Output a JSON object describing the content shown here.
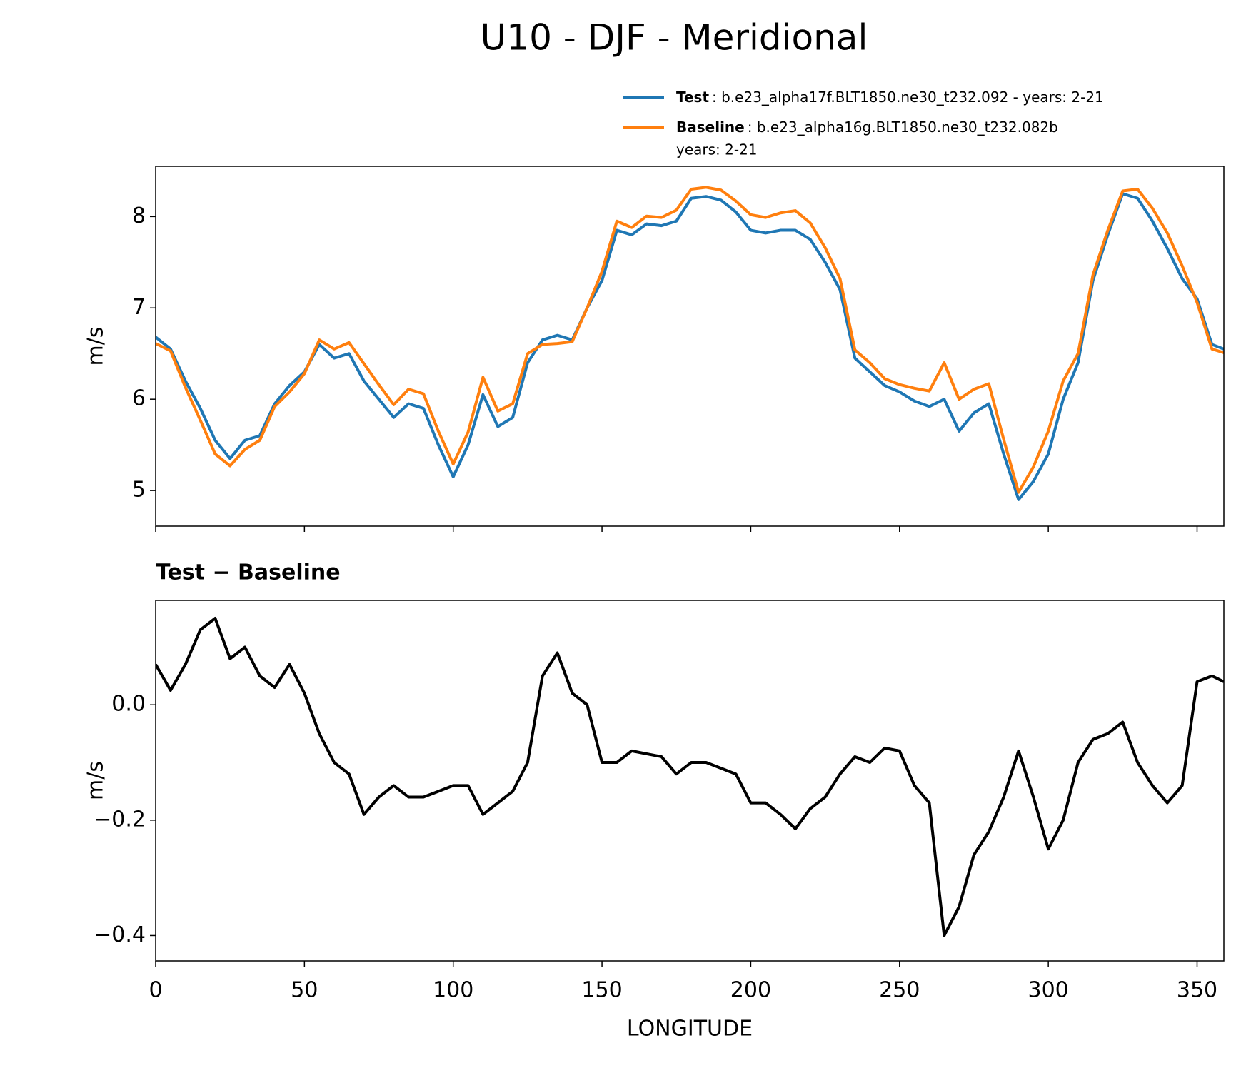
{
  "title": "U10 - DJF - Meridional",
  "chart_data": [
    {
      "type": "line",
      "x": [
        0,
        5,
        10,
        15,
        20,
        25,
        30,
        35,
        40,
        45,
        50,
        55,
        60,
        65,
        70,
        75,
        80,
        85,
        90,
        95,
        100,
        105,
        110,
        115,
        120,
        125,
        130,
        135,
        140,
        145,
        150,
        155,
        160,
        165,
        170,
        175,
        180,
        185,
        190,
        195,
        200,
        205,
        210,
        215,
        220,
        225,
        230,
        235,
        240,
        245,
        250,
        255,
        260,
        265,
        270,
        275,
        280,
        285,
        290,
        295,
        300,
        305,
        310,
        315,
        320,
        325,
        330,
        335,
        340,
        345,
        350,
        355,
        359
      ],
      "series": [
        {
          "name": "Test",
          "legend_text": [
            ": b.e23_alpha17f.BLT1850.ne30_t232.092 - years: 2-21"
          ],
          "color": "#1f77b4",
          "values": [
            6.68,
            6.55,
            6.2,
            5.9,
            5.55,
            5.35,
            5.55,
            5.6,
            5.95,
            6.15,
            6.3,
            6.6,
            6.45,
            6.5,
            6.2,
            6.0,
            5.8,
            5.95,
            5.9,
            5.5,
            5.15,
            5.5,
            6.05,
            5.7,
            5.8,
            6.4,
            6.65,
            6.7,
            6.65,
            7.0,
            7.3,
            7.85,
            7.8,
            7.92,
            7.9,
            7.95,
            8.2,
            8.22,
            8.18,
            8.05,
            7.85,
            7.82,
            7.85,
            7.85,
            7.75,
            7.5,
            7.2,
            6.45,
            6.3,
            6.15,
            6.08,
            5.98,
            5.92,
            6.0,
            5.65,
            5.85,
            5.95,
            5.4,
            4.9,
            5.1,
            5.4,
            6.0,
            6.4,
            7.3,
            7.8,
            8.25,
            8.2,
            7.95,
            7.65,
            7.32,
            7.1,
            6.6,
            6.55
          ]
        },
        {
          "name": "Baseline",
          "legend_text": [
            ": b.e23_alpha16g.BLT1850.ne30_t232.082b",
            "years: 2-21"
          ],
          "color": "#ff7f0e",
          "values": [
            6.61,
            6.53,
            6.13,
            5.77,
            5.4,
            5.27,
            5.45,
            5.55,
            5.92,
            6.08,
            6.28,
            6.65,
            6.55,
            6.62,
            6.39,
            6.16,
            5.94,
            6.11,
            6.06,
            5.65,
            5.29,
            5.64,
            6.24,
            5.87,
            5.95,
            6.5,
            6.6,
            6.61,
            6.63,
            7.0,
            7.4,
            7.95,
            7.88,
            8.005,
            7.99,
            8.07,
            8.3,
            8.32,
            8.29,
            8.17,
            8.02,
            7.99,
            8.04,
            8.065,
            7.93,
            7.66,
            7.32,
            6.54,
            6.4,
            6.225,
            6.16,
            6.12,
            6.09,
            6.4,
            6.0,
            6.11,
            6.17,
            5.56,
            4.98,
            5.26,
            5.65,
            6.2,
            6.5,
            7.36,
            7.85,
            8.28,
            8.3,
            8.09,
            7.82,
            7.46,
            7.06,
            6.55,
            6.51
          ]
        }
      ],
      "ylabel": "m/s",
      "xlim": [
        0,
        359
      ],
      "xticks": [
        0,
        50,
        100,
        150,
        200,
        250,
        300,
        350
      ],
      "ylim": [
        4.61,
        8.55
      ],
      "yticks": [
        5,
        6,
        7,
        8
      ]
    },
    {
      "type": "line",
      "title": "Test − Baseline",
      "xlabel": "LONGITUDE",
      "ylabel": "m/s",
      "x": [
        0,
        5,
        10,
        15,
        20,
        25,
        30,
        35,
        40,
        45,
        50,
        55,
        60,
        65,
        70,
        75,
        80,
        85,
        90,
        95,
        100,
        105,
        110,
        115,
        120,
        125,
        130,
        135,
        140,
        145,
        150,
        155,
        160,
        165,
        170,
        175,
        180,
        185,
        190,
        195,
        200,
        205,
        210,
        215,
        220,
        225,
        230,
        235,
        240,
        245,
        250,
        255,
        260,
        265,
        270,
        275,
        280,
        285,
        290,
        295,
        300,
        305,
        310,
        315,
        320,
        325,
        330,
        335,
        340,
        345,
        350,
        355,
        359
      ],
      "series": [
        {
          "color": "#000000",
          "values": [
            0.07,
            0.025,
            0.07,
            0.13,
            0.15,
            0.08,
            0.1,
            0.05,
            0.03,
            0.07,
            0.02,
            -0.05,
            -0.1,
            -0.12,
            -0.19,
            -0.16,
            -0.14,
            -0.16,
            -0.16,
            -0.15,
            -0.14,
            -0.14,
            -0.19,
            -0.17,
            -0.15,
            -0.1,
            0.05,
            0.09,
            0.02,
            0.0,
            -0.1,
            -0.1,
            -0.08,
            -0.085,
            -0.09,
            -0.12,
            -0.1,
            -0.1,
            -0.11,
            -0.12,
            -0.17,
            -0.17,
            -0.19,
            -0.215,
            -0.18,
            -0.16,
            -0.12,
            -0.09,
            -0.1,
            -0.075,
            -0.08,
            -0.14,
            -0.17,
            -0.4,
            -0.35,
            -0.26,
            -0.22,
            -0.16,
            -0.08,
            -0.16,
            -0.25,
            -0.2,
            -0.1,
            -0.06,
            -0.05,
            -0.03,
            -0.1,
            -0.14,
            -0.17,
            -0.14,
            0.04,
            0.05,
            0.04
          ]
        }
      ],
      "xlim": [
        0,
        359
      ],
      "xticks": [
        0,
        50,
        100,
        150,
        200,
        250,
        300,
        350
      ],
      "ylim": [
        -0.444,
        0.181
      ],
      "yticks": [
        {
          "value": 0,
          "label": "0.0"
        },
        {
          "value": -0.2,
          "label": "−0.2"
        },
        {
          "value": -0.4,
          "label": "−0.4"
        }
      ]
    }
  ]
}
